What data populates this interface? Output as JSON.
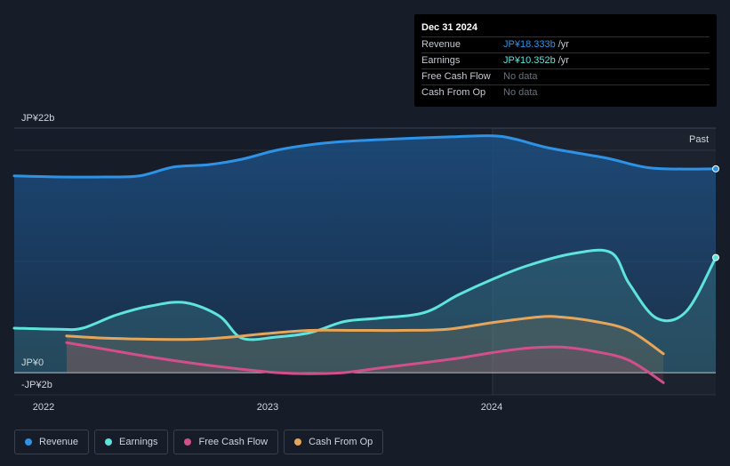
{
  "chart_data": {
    "type": "area",
    "y_axis": {
      "top_label": "JP¥22b",
      "zero_label": "JP¥0",
      "bottom_label": "-JP¥2b",
      "ylim": [
        -2,
        22
      ]
    },
    "x_axis": {
      "labels": [
        "2022",
        "2023",
        "2024"
      ],
      "xlim": [
        2021.9,
        2024.98
      ]
    },
    "past_label": "Past",
    "past_start": 2024.0,
    "series": [
      {
        "name": "Revenue",
        "color": "#2e93e6",
        "points": [
          [
            2021.9,
            17.7
          ],
          [
            2022.1,
            17.6
          ],
          [
            2022.3,
            17.6
          ],
          [
            2022.45,
            17.7
          ],
          [
            2022.6,
            18.5
          ],
          [
            2022.75,
            18.7
          ],
          [
            2022.9,
            19.2
          ],
          [
            2023.05,
            20.0
          ],
          [
            2023.2,
            20.5
          ],
          [
            2023.35,
            20.8
          ],
          [
            2023.55,
            21.0
          ],
          [
            2023.8,
            21.2
          ],
          [
            2024.0,
            21.3
          ],
          [
            2024.1,
            21.0
          ],
          [
            2024.25,
            20.2
          ],
          [
            2024.5,
            19.3
          ],
          [
            2024.7,
            18.4
          ],
          [
            2024.98,
            18.333
          ]
        ]
      },
      {
        "name": "Earnings",
        "color": "#5ee4dc",
        "points": [
          [
            2021.9,
            4.0
          ],
          [
            2022.1,
            3.9
          ],
          [
            2022.2,
            4.0
          ],
          [
            2022.35,
            5.2
          ],
          [
            2022.5,
            6.0
          ],
          [
            2022.65,
            6.3
          ],
          [
            2022.8,
            5.1
          ],
          [
            2022.9,
            3.1
          ],
          [
            2023.05,
            3.2
          ],
          [
            2023.2,
            3.6
          ],
          [
            2023.35,
            4.6
          ],
          [
            2023.5,
            4.9
          ],
          [
            2023.7,
            5.4
          ],
          [
            2023.85,
            7.0
          ],
          [
            2024.0,
            8.4
          ],
          [
            2024.15,
            9.6
          ],
          [
            2024.35,
            10.7
          ],
          [
            2024.52,
            10.8
          ],
          [
            2024.6,
            8.0
          ],
          [
            2024.72,
            4.9
          ],
          [
            2024.85,
            5.5
          ],
          [
            2024.98,
            10.352
          ]
        ]
      },
      {
        "name": "Free Cash Flow",
        "color": "#d14f8a",
        "points": [
          [
            2022.13,
            2.7
          ],
          [
            2022.3,
            2.1
          ],
          [
            2022.5,
            1.4
          ],
          [
            2022.7,
            0.8
          ],
          [
            2022.9,
            0.3
          ],
          [
            2023.05,
            0.0
          ],
          [
            2023.2,
            -0.1
          ],
          [
            2023.35,
            0.0
          ],
          [
            2023.5,
            0.4
          ],
          [
            2023.7,
            0.9
          ],
          [
            2023.85,
            1.3
          ],
          [
            2024.0,
            1.8
          ],
          [
            2024.15,
            2.2
          ],
          [
            2024.3,
            2.3
          ],
          [
            2024.45,
            1.9
          ],
          [
            2024.6,
            1.1
          ],
          [
            2024.75,
            -0.9
          ]
        ]
      },
      {
        "name": "Cash From Op",
        "color": "#e5a55a",
        "points": [
          [
            2022.13,
            3.3
          ],
          [
            2022.3,
            3.1
          ],
          [
            2022.5,
            3.0
          ],
          [
            2022.7,
            3.0
          ],
          [
            2022.85,
            3.2
          ],
          [
            2023.0,
            3.5
          ],
          [
            2023.2,
            3.8
          ],
          [
            2023.4,
            3.8
          ],
          [
            2023.6,
            3.8
          ],
          [
            2023.8,
            3.9
          ],
          [
            2024.0,
            4.5
          ],
          [
            2024.2,
            5.0
          ],
          [
            2024.3,
            5.0
          ],
          [
            2024.45,
            4.6
          ],
          [
            2024.6,
            3.8
          ],
          [
            2024.75,
            1.7
          ]
        ]
      }
    ]
  },
  "tooltip": {
    "date": "Dec 31 2024",
    "rows": [
      {
        "label": "Revenue",
        "value": "JP¥18.333b",
        "unit": "/yr",
        "color": "#2e93e6"
      },
      {
        "label": "Earnings",
        "value": "JP¥10.352b",
        "unit": "/yr",
        "color": "#5ee4dc"
      },
      {
        "label": "Free Cash Flow",
        "value": "No data",
        "unit": "",
        "color": "#6b717c"
      },
      {
        "label": "Cash From Op",
        "value": "No data",
        "unit": "",
        "color": "#6b717c"
      }
    ]
  },
  "legend": [
    {
      "label": "Revenue",
      "color": "#2e93e6"
    },
    {
      "label": "Earnings",
      "color": "#5ee4dc"
    },
    {
      "label": "Free Cash Flow",
      "color": "#d14f8a"
    },
    {
      "label": "Cash From Op",
      "color": "#e5a55a"
    }
  ]
}
